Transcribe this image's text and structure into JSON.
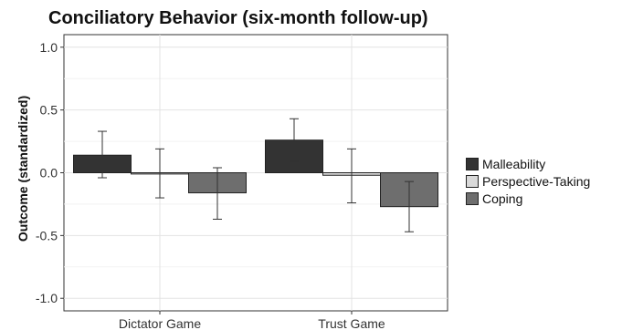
{
  "chart_data": {
    "type": "bar",
    "title": "Conciliatory Behavior (six-month follow-up)",
    "xlabel": "",
    "ylabel": "Outcome (standardized)",
    "ylim": [
      -1.1,
      1.1
    ],
    "yticks": [
      -1.0,
      -0.5,
      0.0,
      0.5,
      1.0
    ],
    "ytick_labels": [
      "-1.0",
      "-0.5",
      "0.0",
      "0.5",
      "1.0"
    ],
    "categories": [
      "Dictator Game",
      "Trust Game"
    ],
    "series": [
      {
        "name": "Malleability",
        "color": "#333333",
        "values": [
          0.14,
          0.26
        ],
        "error_low": [
          -0.04,
          0.09
        ],
        "error_high": [
          0.33,
          0.43
        ]
      },
      {
        "name": "Perspective-Taking",
        "color": "#d9d9d9",
        "values": [
          -0.01,
          -0.02
        ],
        "error_low": [
          -0.2,
          -0.24
        ],
        "error_high": [
          0.19,
          0.19
        ]
      },
      {
        "name": "Coping",
        "color": "#6e6e6e",
        "values": [
          -0.16,
          -0.27
        ],
        "error_low": [
          -0.37,
          -0.47
        ],
        "error_high": [
          0.04,
          -0.07
        ]
      }
    ],
    "grid": true,
    "legend_position": "right"
  }
}
